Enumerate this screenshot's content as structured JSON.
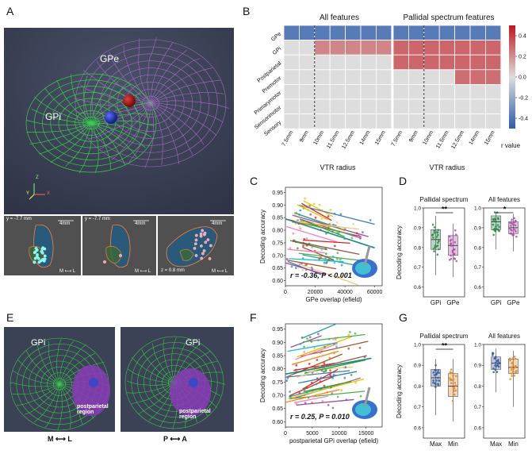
{
  "panels": {
    "A": {
      "letter": "A",
      "labels": {
        "gpe": "GPe",
        "gpi": "GPi"
      },
      "axes": {
        "z": "Z",
        "y": "Y",
        "x": "X"
      },
      "slices": [
        {
          "coord": "y = -7.7 mm",
          "scale": "4mm",
          "orient": "M ⟷ L"
        },
        {
          "coord": "y = -7.7 mm",
          "scale": "4mm",
          "orient": "M ⟷ L"
        },
        {
          "coord": "z = 0.8 mm",
          "scale": "4mm",
          "orient": "M ⟷ L"
        }
      ]
    },
    "B": {
      "letter": "B",
      "xlabel": "VTR radius",
      "colorbar_label": "r value"
    },
    "C": {
      "letter": "C",
      "annotation": "r = -0.36, P < 0.001"
    },
    "D": {
      "letter": "D",
      "ylabel": "Decoding accuracy"
    },
    "E": {
      "letter": "E",
      "left": {
        "label": "GPi",
        "region": "postparietal region",
        "orient": "M ⟷ L"
      },
      "right": {
        "label": "GPi",
        "region": "postparietal region",
        "orient": "P ⟷ A"
      }
    },
    "F": {
      "letter": "F",
      "annotation": "r = 0.25, P = 0.010"
    },
    "G": {
      "letter": "G",
      "ylabel": "Decoding accuracy"
    }
  },
  "chart_data": [
    {
      "id": "B-left",
      "type": "heatmap",
      "title": "All features",
      "xlabel": "VTR radius",
      "x": [
        "7.5mm",
        "9mm",
        "10mm",
        "11.5mm",
        "12.5mm",
        "14mm",
        "15mm"
      ],
      "y": [
        "GPe",
        "GPi",
        "Postparietal",
        "Premotor",
        "Primarymotor",
        "Sensorimotor",
        "Sensory"
      ],
      "values": [
        [
          -0.38,
          -0.38,
          -0.38,
          -0.38,
          -0.38,
          -0.38,
          -0.38
        ],
        [
          0,
          0,
          0.22,
          0.22,
          0.22,
          0.22,
          0.22
        ],
        [
          0,
          0,
          0,
          0,
          0,
          0,
          0
        ],
        [
          0,
          0,
          0,
          0,
          0,
          0,
          0
        ],
        [
          0,
          0,
          0,
          0,
          0,
          0,
          0
        ],
        [
          0,
          0,
          0,
          0,
          0,
          0,
          0
        ],
        [
          0,
          0,
          0,
          0,
          0,
          0,
          0
        ]
      ],
      "vline_at": "10mm"
    },
    {
      "id": "B-right",
      "type": "heatmap",
      "title": "Pallidal spectrum features",
      "xlabel": "VTR radius",
      "x": [
        "7.5mm",
        "9mm",
        "10mm",
        "11.5mm",
        "12.5mm",
        "14mm",
        "15mm"
      ],
      "y": [
        "GPe",
        "GPi",
        "Postparietal",
        "Premotor",
        "Primarymotor",
        "Sensorimotor",
        "Sensory"
      ],
      "values": [
        [
          -0.38,
          -0.38,
          -0.38,
          -0.38,
          -0.38,
          -0.38,
          -0.38
        ],
        [
          0.3,
          0.3,
          0.3,
          0.3,
          0.3,
          0.3,
          0.3
        ],
        [
          0.3,
          0.3,
          0.3,
          0.3,
          0.3,
          0.3,
          0.3
        ],
        [
          0,
          0,
          0,
          0,
          0.28,
          0.28,
          0.28
        ],
        [
          0,
          0,
          0,
          0,
          0,
          0,
          0
        ],
        [
          0,
          0,
          0,
          0,
          0,
          0,
          0
        ],
        [
          0,
          0,
          0,
          0,
          0,
          0,
          0
        ]
      ],
      "vline_at": "10mm",
      "colorbar": {
        "label": "r value",
        "range": [
          -0.5,
          0.5
        ],
        "ticks": [
          "0.4",
          "0.2",
          "0.0",
          "-0.2",
          "-0.4"
        ]
      }
    },
    {
      "id": "C",
      "type": "scatter",
      "xlabel": "GPe overlap (efield)",
      "ylabel": "Decoding accuracy",
      "xlim": [
        0,
        65000
      ],
      "ylim": [
        0.58,
        0.97
      ],
      "xticks": [
        "0",
        "20000",
        "40000",
        "60000"
      ],
      "yticks": [
        "0.60",
        "0.65",
        "0.70",
        "0.75",
        "0.80",
        "0.85",
        "0.90",
        "0.95"
      ],
      "trend": {
        "x": [
          0,
          60000
        ],
        "y": [
          0.845,
          0.73
        ]
      }
    },
    {
      "id": "D-left",
      "type": "scatter",
      "title": "Pallidal spectrum",
      "ylabel": "Decoding accuracy",
      "categories": [
        "GPi",
        "GPe"
      ],
      "ylim": [
        0.55,
        1.0
      ],
      "yticks": [
        "0.6",
        "0.7",
        "0.8",
        "0.9",
        "1.0"
      ],
      "significance": "**",
      "series": [
        {
          "name": "GPi",
          "median": 0.84,
          "q1": 0.79,
          "q3": 0.89,
          "min": 0.66,
          "max": 0.96
        },
        {
          "name": "GPe",
          "median": 0.81,
          "q1": 0.76,
          "q3": 0.86,
          "min": 0.65,
          "max": 0.92
        }
      ]
    },
    {
      "id": "D-right",
      "type": "scatter",
      "title": "All features",
      "categories": [
        "GPi",
        "GPe"
      ],
      "ylim": [
        0.55,
        1.0
      ],
      "yticks": [
        "0.6",
        "0.7",
        "0.8",
        "0.9",
        "1.0"
      ],
      "significance": "*",
      "series": [
        {
          "name": "GPi",
          "median": 0.93,
          "q1": 0.89,
          "q3": 0.96,
          "min": 0.79,
          "max": 0.98
        },
        {
          "name": "GPe",
          "median": 0.9,
          "q1": 0.87,
          "q3": 0.93,
          "min": 0.78,
          "max": 0.97
        }
      ]
    },
    {
      "id": "F",
      "type": "scatter",
      "xlabel": "postparietal GPi overlap (efield)",
      "ylabel": "Decoding accuracy",
      "xlim": [
        0,
        18000
      ],
      "ylim": [
        0.58,
        0.97
      ],
      "xticks": [
        "0",
        "5000",
        "10000",
        "15000"
      ],
      "yticks": [
        "0.60",
        "0.65",
        "0.70",
        "0.75",
        "0.80",
        "0.85",
        "0.90",
        "0.95"
      ],
      "trend": {
        "x": [
          0,
          16000
        ],
        "y": [
          0.78,
          0.84
        ]
      }
    },
    {
      "id": "G-left",
      "type": "scatter",
      "title": "Pallidal spectrum",
      "ylabel": "Decoding accuracy",
      "categories": [
        "Max",
        "Min"
      ],
      "ylim": [
        0.55,
        1.0
      ],
      "yticks": [
        "0.6",
        "0.7",
        "0.8",
        "0.9",
        "1.0"
      ],
      "significance": "**",
      "series": [
        {
          "name": "Max",
          "median": 0.84,
          "q1": 0.8,
          "q3": 0.88,
          "min": 0.66,
          "max": 0.93
        },
        {
          "name": "Min",
          "median": 0.8,
          "q1": 0.75,
          "q3": 0.86,
          "min": 0.63,
          "max": 0.93
        }
      ]
    },
    {
      "id": "G-right",
      "type": "scatter",
      "title": "All features",
      "categories": [
        "Max",
        "Min"
      ],
      "ylim": [
        0.55,
        1.0
      ],
      "yticks": [
        "0.6",
        "0.7",
        "0.8",
        "0.9",
        "1.0"
      ],
      "series": [
        {
          "name": "Max",
          "median": 0.91,
          "q1": 0.88,
          "q3": 0.94,
          "min": 0.77,
          "max": 0.98
        },
        {
          "name": "Min",
          "median": 0.89,
          "q1": 0.86,
          "q3": 0.93,
          "min": 0.7,
          "max": 0.97
        }
      ]
    }
  ]
}
